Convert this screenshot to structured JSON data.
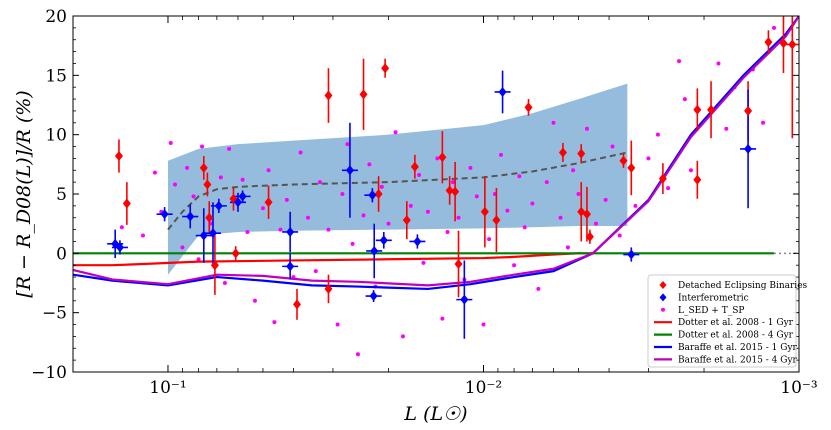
{
  "chart_data": {
    "type": "scatter",
    "title": "",
    "xlabel": "L (L☉)",
    "ylabel": "[R − R_D08(L)]/R (%)",
    "xscale": "log",
    "xlim": [
      0.2,
      0.001
    ],
    "ylim": [
      -10,
      20
    ],
    "x_ticks": [
      {
        "value": 0.1,
        "label": "10⁻¹"
      },
      {
        "value": 0.01,
        "label": "10⁻²"
      },
      {
        "value": 0.001,
        "label": "10⁻³"
      }
    ],
    "y_ticks": [
      -10,
      -5,
      0,
      5,
      10,
      15,
      20
    ],
    "legend_position": "lower-right",
    "legend": [
      {
        "label": "Detached Eclipsing Binaries",
        "color": "#ff0000",
        "marker": "diamond"
      },
      {
        "label": "Interferometric",
        "color": "#0000ff",
        "marker": "diamond"
      },
      {
        "label": "L_SED + T_SP",
        "color": "#ff00ff",
        "marker": "dot"
      },
      {
        "label": "Dotter et al. 2008 - 1 Gyr",
        "color": "#ff0000",
        "marker": "line"
      },
      {
        "label": "Dotter et al. 2008 - 4 Gyr",
        "color": "#008000",
        "marker": "line"
      },
      {
        "label": "Baraffe et al. 2015 - 1 Gyr",
        "color": "#0000ff",
        "marker": "line"
      },
      {
        "label": "Baraffe et al. 2015 - 4 Gyr",
        "color": "#bf00bf",
        "marker": "line"
      }
    ],
    "colors": {
      "debs": "#ff0000",
      "interf": "#0000ff",
      "lsed": "#ff00ff",
      "band": "#8fb8da",
      "trend": "#555555",
      "dotter1": "#ff0000",
      "dotter4": "#008000",
      "baraffe1": "#0000ff",
      "baraffe4": "#bf00bf"
    },
    "confidence_band": {
      "x": [
        0.1,
        0.08,
        0.06,
        0.04,
        0.02,
        0.01,
        0.007,
        0.005,
        0.0035
      ],
      "upper": [
        7.8,
        8.8,
        9.2,
        9.5,
        10.0,
        10.8,
        11.8,
        13.0,
        14.3
      ],
      "lower": [
        -1.8,
        1.5,
        1.8,
        1.9,
        2.0,
        2.1,
        2.2,
        2.3,
        2.3
      ]
    },
    "trend_line": {
      "x": [
        0.1,
        0.09,
        0.08,
        0.07,
        0.06,
        0.05,
        0.04,
        0.02,
        0.01,
        0.007,
        0.005,
        0.0035
      ],
      "y": [
        2.0,
        3.5,
        4.8,
        5.4,
        5.6,
        5.7,
        5.8,
        6.0,
        6.4,
        6.9,
        7.6,
        8.5
      ]
    },
    "models": [
      {
        "name": "Dotter et al. 2008 - 1 Gyr",
        "color": "#ff0000",
        "x": [
          0.2,
          0.15,
          0.12,
          0.08,
          0.04,
          0.02,
          0.01,
          0.008,
          0.006,
          0.005,
          0.0045
        ],
        "y": [
          -1.0,
          -1.0,
          -0.9,
          -0.7,
          -0.6,
          -0.5,
          -0.4,
          -0.3,
          -0.1,
          0.0,
          0.0
        ]
      },
      {
        "name": "Dotter et al. 2008 - 4 Gyr",
        "color": "#008000",
        "x": [
          0.2,
          0.01,
          0.0012
        ],
        "y": [
          0.0,
          0.0,
          0.0
        ]
      },
      {
        "name": "Baraffe et al. 2015 - 1 Gyr",
        "color": "#0000ff",
        "x": [
          0.2,
          0.15,
          0.1,
          0.07,
          0.05,
          0.035,
          0.025,
          0.015,
          0.011,
          0.008,
          0.006,
          0.0045,
          0.003,
          0.0022,
          0.0015,
          0.0011,
          0.001
        ],
        "y": [
          -1.8,
          -2.3,
          -2.7,
          -2.0,
          -2.3,
          -2.7,
          -2.8,
          -3.0,
          -2.6,
          -2.0,
          -1.5,
          0.0,
          4.5,
          10.0,
          15.0,
          18.5,
          20.0
        ]
      },
      {
        "name": "Baraffe et al. 2015 - 4 Gyr",
        "color": "#bf00bf",
        "x": [
          0.2,
          0.15,
          0.1,
          0.07,
          0.05,
          0.035,
          0.025,
          0.015,
          0.011,
          0.008,
          0.006,
          0.0045,
          0.003,
          0.0022,
          0.0015,
          0.0011,
          0.001
        ],
        "y": [
          -1.4,
          -2.2,
          -2.6,
          -1.8,
          -1.9,
          -2.3,
          -2.4,
          -2.7,
          -2.4,
          -1.8,
          -1.3,
          0.0,
          4.4,
          9.8,
          14.8,
          18.3,
          20.0
        ]
      }
    ],
    "series": [
      {
        "name": "Detached Eclipsing Binaries",
        "color": "#ff0000",
        "points": [
          {
            "x": 0.143,
            "y": 8.2,
            "yerr": 1.4
          },
          {
            "x": 0.135,
            "y": 4.2,
            "yerr": 1.8
          },
          {
            "x": 0.077,
            "y": 7.2,
            "yerr": 1.0
          },
          {
            "x": 0.074,
            "y": 3.0,
            "yerr": 1.4
          },
          {
            "x": 0.075,
            "y": 5.8,
            "yerr": 1.0
          },
          {
            "x": 0.062,
            "y": 4.6,
            "yerr": 1.0
          },
          {
            "x": 0.048,
            "y": 4.3,
            "yerr": 1.4
          },
          {
            "x": 0.061,
            "y": 0.0,
            "yerr": 0.6
          },
          {
            "x": 0.071,
            "y": -1.0,
            "yerr": 2.5
          },
          {
            "x": 0.039,
            "y": -4.3,
            "yerr": 1.3
          },
          {
            "x": 0.031,
            "y": 13.3,
            "yerr": 2.3
          },
          {
            "x": 0.024,
            "y": 13.4,
            "yerr": 3.0
          },
          {
            "x": 0.0205,
            "y": 15.6,
            "yerr": 0.8
          },
          {
            "x": 0.031,
            "y": -3.0,
            "yerr": 1.2
          },
          {
            "x": 0.0215,
            "y": 5.0,
            "yerr": 1.5
          },
          {
            "x": 0.0175,
            "y": 2.8,
            "yerr": 1.6
          },
          {
            "x": 0.0165,
            "y": 7.3,
            "yerr": 1.0
          },
          {
            "x": 0.0135,
            "y": 8.1,
            "yerr": 2.2
          },
          {
            "x": 0.0128,
            "y": 5.3,
            "yerr": 1.2
          },
          {
            "x": 0.0123,
            "y": 5.2,
            "yerr": 2.5
          },
          {
            "x": 0.012,
            "y": -0.9,
            "yerr": 2.8
          },
          {
            "x": 0.0099,
            "y": 3.5,
            "yerr": 3.0
          },
          {
            "x": 0.0091,
            "y": 2.8,
            "yerr": 2.7
          },
          {
            "x": 0.0072,
            "y": 12.3,
            "yerr": 0.7
          },
          {
            "x": 0.0056,
            "y": 8.5,
            "yerr": 0.8
          },
          {
            "x": 0.0049,
            "y": 8.4,
            "yerr": 0.8
          },
          {
            "x": 0.0049,
            "y": 3.5,
            "yerr": 2.5
          },
          {
            "x": 0.0047,
            "y": 3.3,
            "yerr": 2.3
          },
          {
            "x": 0.0046,
            "y": 1.4,
            "yerr": 0.6
          },
          {
            "x": 0.0036,
            "y": 7.8,
            "yerr": 0.6
          },
          {
            "x": 0.0034,
            "y": 7.2,
            "yerr": 2.3
          },
          {
            "x": 0.0027,
            "y": 6.3,
            "yerr": 1.3
          },
          {
            "x": 0.0021,
            "y": 12.1,
            "yerr": 1.8
          },
          {
            "x": 0.0021,
            "y": 6.2,
            "yerr": 1.6
          },
          {
            "x": 0.0019,
            "y": 12.1,
            "yerr": 2.4
          },
          {
            "x": 0.00145,
            "y": 12.0,
            "yerr": 2.5
          },
          {
            "x": 0.00125,
            "y": 17.8,
            "yerr": 1.0
          },
          {
            "x": 0.00112,
            "y": 17.7,
            "yerr": 2.5
          },
          {
            "x": 0.00105,
            "y": 17.6,
            "yerr": 7.9
          }
        ]
      },
      {
        "name": "Interferometric",
        "color": "#0000ff",
        "points": [
          {
            "x": 0.147,
            "y": 0.8,
            "yerr": 1.2
          },
          {
            "x": 0.142,
            "y": 0.5,
            "yerr": 0.6
          },
          {
            "x": 0.1025,
            "y": 3.3,
            "yerr": 0.6
          },
          {
            "x": 0.085,
            "y": 3.1,
            "yerr": 1.0
          },
          {
            "x": 0.077,
            "y": 1.5,
            "yerr": 2.3
          },
          {
            "x": 0.072,
            "y": 1.7,
            "yerr": 2.6
          },
          {
            "x": 0.069,
            "y": 4.0,
            "yerr": 0.6
          },
          {
            "x": 0.06,
            "y": 4.3,
            "yerr": 0.8
          },
          {
            "x": 0.058,
            "y": 4.8,
            "yerr": 0.5
          },
          {
            "x": 0.041,
            "y": 1.8,
            "yerr": 1.7
          },
          {
            "x": 0.041,
            "y": -1.1,
            "yerr": 1.1
          },
          {
            "x": 0.0265,
            "y": 7.0,
            "yerr": 4.0
          },
          {
            "x": 0.0225,
            "y": 4.9,
            "yerr": 0.6
          },
          {
            "x": 0.0222,
            "y": 0.2,
            "yerr": 2.3
          },
          {
            "x": 0.0223,
            "y": -3.6,
            "yerr": 0.5
          },
          {
            "x": 0.0207,
            "y": 1.1,
            "yerr": 0.7
          },
          {
            "x": 0.0162,
            "y": 1.0,
            "yerr": 0.6
          },
          {
            "x": 0.0115,
            "y": -3.9,
            "yerr": 3.3
          },
          {
            "x": 0.0087,
            "y": 13.6,
            "yerr": 1.8
          },
          {
            "x": 0.0034,
            "y": -0.1,
            "yerr": 0.6
          },
          {
            "x": 0.00145,
            "y": 8.8,
            "yerr": 5.0
          }
        ]
      },
      {
        "name": "L_SED + T_SP",
        "color": "#ff00ff",
        "points": [
          {
            "x": 0.14,
            "y": 2.2
          },
          {
            "x": 0.12,
            "y": 1.5
          },
          {
            "x": 0.11,
            "y": 6.8
          },
          {
            "x": 0.105,
            "y": 3.5
          },
          {
            "x": 0.098,
            "y": 9.3
          },
          {
            "x": 0.095,
            "y": 5.8
          },
          {
            "x": 0.09,
            "y": 0.5
          },
          {
            "x": 0.087,
            "y": 7.2
          },
          {
            "x": 0.083,
            "y": 4.8
          },
          {
            "x": 0.08,
            "y": -0.5
          },
          {
            "x": 0.078,
            "y": 9.0
          },
          {
            "x": 0.073,
            "y": 2.5
          },
          {
            "x": 0.068,
            "y": 6.4
          },
          {
            "x": 0.066,
            "y": -2.5
          },
          {
            "x": 0.064,
            "y": 8.8
          },
          {
            "x": 0.058,
            "y": 6.2
          },
          {
            "x": 0.056,
            "y": 1.8
          },
          {
            "x": 0.053,
            "y": -4.0
          },
          {
            "x": 0.05,
            "y": 3.8
          },
          {
            "x": 0.048,
            "y": 7.0
          },
          {
            "x": 0.046,
            "y": -5.8
          },
          {
            "x": 0.044,
            "y": 2.0
          },
          {
            "x": 0.042,
            "y": 4.5
          },
          {
            "x": 0.04,
            "y": -2.0
          },
          {
            "x": 0.038,
            "y": 8.5
          },
          {
            "x": 0.036,
            "y": 3.0
          },
          {
            "x": 0.034,
            "y": -1.5
          },
          {
            "x": 0.033,
            "y": 6.0
          },
          {
            "x": 0.031,
            "y": 2.0
          },
          {
            "x": 0.029,
            "y": -6.0
          },
          {
            "x": 0.028,
            "y": 5.0
          },
          {
            "x": 0.027,
            "y": 9.2
          },
          {
            "x": 0.026,
            "y": 0.8
          },
          {
            "x": 0.025,
            "y": -8.5
          },
          {
            "x": 0.024,
            "y": 3.2
          },
          {
            "x": 0.023,
            "y": 7.5
          },
          {
            "x": 0.022,
            "y": -2.8
          },
          {
            "x": 0.021,
            "y": 5.6
          },
          {
            "x": 0.02,
            "y": 2.5
          },
          {
            "x": 0.019,
            "y": 10.2
          },
          {
            "x": 0.018,
            "y": -7.0
          },
          {
            "x": 0.017,
            "y": 4.0
          },
          {
            "x": 0.016,
            "y": 6.6
          },
          {
            "x": 0.0155,
            "y": -0.8
          },
          {
            "x": 0.015,
            "y": 3.5
          },
          {
            "x": 0.014,
            "y": 8.0
          },
          {
            "x": 0.0135,
            "y": -5.5
          },
          {
            "x": 0.013,
            "y": 1.8
          },
          {
            "x": 0.0125,
            "y": 6.0
          },
          {
            "x": 0.012,
            "y": 3.0
          },
          {
            "x": 0.0115,
            "y": -2.2
          },
          {
            "x": 0.011,
            "y": 7.2
          },
          {
            "x": 0.0105,
            "y": 4.8
          },
          {
            "x": 0.01,
            "y": -6.0
          },
          {
            "x": 0.0096,
            "y": 1.2
          },
          {
            "x": 0.0092,
            "y": 5.0
          },
          {
            "x": 0.0088,
            "y": 8.3
          },
          {
            "x": 0.0084,
            "y": 3.6
          },
          {
            "x": 0.008,
            "y": -1.0
          },
          {
            "x": 0.0077,
            "y": 6.5
          },
          {
            "x": 0.0074,
            "y": 2.2
          },
          {
            "x": 0.007,
            "y": 4.2
          },
          {
            "x": 0.0067,
            "y": -3.0
          },
          {
            "x": 0.0063,
            "y": 6.0
          },
          {
            "x": 0.006,
            "y": 11.0
          },
          {
            "x": 0.0057,
            "y": 3.0
          },
          {
            "x": 0.0054,
            "y": 0.5
          },
          {
            "x": 0.0052,
            "y": 7.0
          },
          {
            "x": 0.005,
            "y": 5.0
          },
          {
            "x": 0.0047,
            "y": 10.5
          },
          {
            "x": 0.0044,
            "y": 2.5
          },
          {
            "x": 0.0041,
            "y": 4.5
          },
          {
            "x": 0.0039,
            "y": 9.0
          },
          {
            "x": 0.0037,
            "y": 1.5
          },
          {
            "x": 0.0033,
            "y": 4.0
          },
          {
            "x": 0.003,
            "y": 8.0
          },
          {
            "x": 0.0028,
            "y": 10.0
          },
          {
            "x": 0.0026,
            "y": 5.5
          },
          {
            "x": 0.0024,
            "y": 16.2
          },
          {
            "x": 0.0023,
            "y": 13.0
          },
          {
            "x": 0.0022,
            "y": 7.0
          },
          {
            "x": 0.0018,
            "y": 16.0
          },
          {
            "x": 0.0017,
            "y": 10.5
          },
          {
            "x": 0.0016,
            "y": 14.0
          },
          {
            "x": 0.0014,
            "y": 15.5
          },
          {
            "x": 0.0013,
            "y": 11.0
          },
          {
            "x": 0.0012,
            "y": 19.0
          }
        ]
      }
    ]
  }
}
